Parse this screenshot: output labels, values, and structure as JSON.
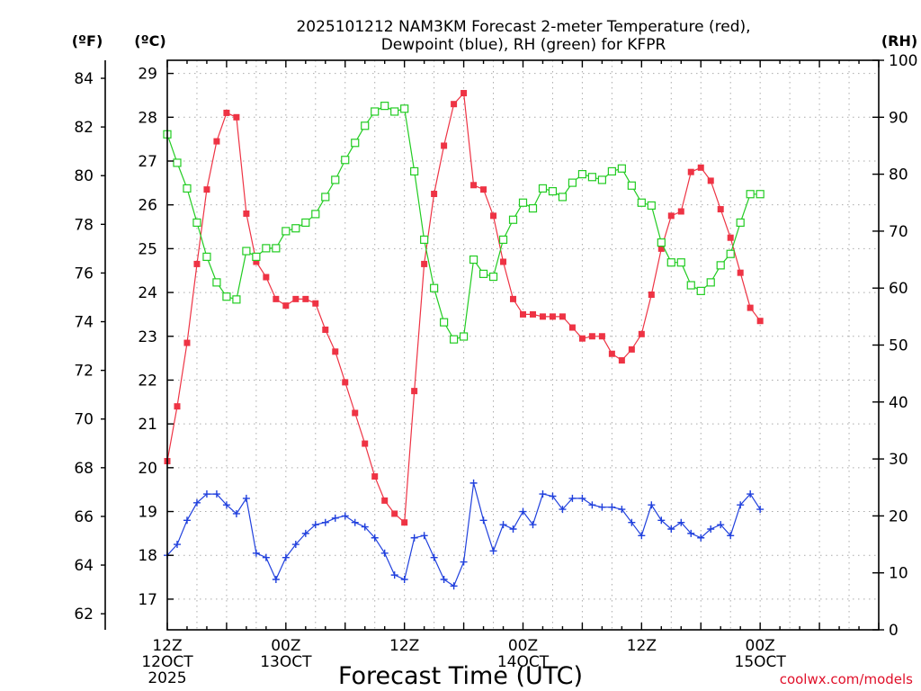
{
  "chart_data": {
    "type": "line",
    "title_lines": [
      "2025101212 NAM3KM Forecast 2-meter Temperature (red),",
      "Dewpoint (blue), RH (green) for KFPR"
    ],
    "xlabel": "Forecast Time (UTC)",
    "credit": "coolwx.com/models",
    "units": {
      "fahrenheit": "(ºF)",
      "celsius": "(ºC)",
      "rh": "(RH)"
    },
    "x_axis": {
      "unit": "forecast hour",
      "range": [
        0,
        36
      ],
      "ticks": [
        {
          "x": 0,
          "lines": [
            "12Z",
            "12OCT",
            "2025"
          ]
        },
        {
          "x": 6,
          "lines": [
            "00Z",
            "13OCT"
          ]
        },
        {
          "x": 12,
          "lines": [
            "12Z"
          ]
        },
        {
          "x": 18,
          "lines": [
            "00Z",
            "14OCT"
          ]
        },
        {
          "x": 24,
          "lines": [
            "12Z"
          ]
        },
        {
          "x": 30,
          "lines": [
            "00Z",
            "15OCT"
          ]
        }
      ],
      "major_every": 3,
      "grid_every": 1.5
    },
    "y_axes": {
      "celsius": {
        "range": [
          16.3,
          29.3
        ],
        "ticks": [
          17,
          18,
          19,
          20,
          21,
          22,
          23,
          24,
          25,
          26,
          27,
          28,
          29
        ]
      },
      "fahrenheit": {
        "range": [
          61.34,
          84.74
        ],
        "ticks": [
          62,
          64,
          66,
          68,
          70,
          72,
          74,
          76,
          78,
          80,
          82,
          84
        ]
      },
      "rh": {
        "range": [
          0,
          100
        ],
        "ticks": [
          0,
          10,
          20,
          30,
          40,
          50,
          60,
          70,
          80,
          90,
          100
        ]
      }
    },
    "series": [
      {
        "name": "2-meter Temperature",
        "color": "#ee3344",
        "marker": "filled-square",
        "axis": "celsius",
        "x": [
          0,
          0.5,
          1,
          1.5,
          2,
          2.5,
          3,
          3.5,
          4,
          4.5,
          5,
          5.5,
          6,
          6.5,
          7,
          7.5,
          8,
          8.5,
          9,
          9.5,
          10,
          10.5,
          11,
          11.5,
          12,
          12.5,
          13,
          13.5,
          14,
          14.5,
          15,
          15.5,
          16,
          16.5,
          17,
          17.5,
          18,
          18.5,
          19,
          19.5,
          20,
          20.5,
          21,
          21.5,
          22,
          22.5,
          23,
          23.5,
          24,
          24.5,
          25,
          25.5,
          26,
          26.5,
          27,
          27.5,
          28,
          28.5,
          29,
          29.5,
          30
        ],
        "values": [
          20.15,
          21.4,
          22.85,
          24.65,
          26.35,
          27.45,
          28.1,
          28.0,
          25.8,
          24.7,
          24.35,
          23.85,
          23.7,
          23.85,
          23.85,
          23.75,
          23.15,
          22.65,
          21.95,
          21.25,
          20.55,
          19.8,
          19.25,
          18.95,
          18.75,
          21.75,
          24.65,
          26.25,
          27.35,
          28.3,
          28.55,
          26.45,
          26.35,
          25.75,
          24.7,
          23.85,
          23.5,
          23.5,
          23.45,
          23.45,
          23.45,
          23.2,
          22.95,
          23.0,
          23.0,
          22.6,
          22.45,
          22.7,
          23.05,
          23.95,
          25.0,
          25.75,
          25.85,
          26.75,
          26.85,
          26.55,
          25.9,
          25.25,
          24.45,
          23.65,
          23.35
        ]
      },
      {
        "name": "Dewpoint",
        "color": "#2040dd",
        "marker": "plus",
        "axis": "celsius",
        "x": [
          0,
          0.5,
          1,
          1.5,
          2,
          2.5,
          3,
          3.5,
          4,
          4.5,
          5,
          5.5,
          6,
          6.5,
          7,
          7.5,
          8,
          8.5,
          9,
          9.5,
          10,
          10.5,
          11,
          11.5,
          12,
          12.5,
          13,
          13.5,
          14,
          14.5,
          15,
          15.5,
          16,
          16.5,
          17,
          17.5,
          18,
          18.5,
          19,
          19.5,
          20,
          20.5,
          21,
          21.5,
          22,
          22.5,
          23,
          23.5,
          24,
          24.5,
          25,
          25.5,
          26,
          26.5,
          27,
          27.5,
          28,
          28.5,
          29,
          29.5,
          30
        ],
        "values": [
          18.0,
          18.25,
          18.8,
          19.2,
          19.4,
          19.4,
          19.15,
          18.95,
          19.3,
          18.05,
          17.95,
          17.45,
          17.95,
          18.25,
          18.5,
          18.7,
          18.75,
          18.85,
          18.9,
          18.75,
          18.65,
          18.4,
          18.05,
          17.55,
          17.45,
          18.4,
          18.45,
          17.95,
          17.45,
          17.3,
          17.85,
          19.65,
          18.8,
          18.1,
          18.7,
          18.6,
          19.0,
          18.7,
          19.4,
          19.35,
          19.05,
          19.3,
          19.3,
          19.15,
          19.1,
          19.1,
          19.05,
          18.75,
          18.45,
          19.15,
          18.8,
          18.6,
          18.75,
          18.5,
          18.4,
          18.6,
          18.7,
          18.45,
          19.15,
          19.4,
          19.05
        ]
      },
      {
        "name": "RH",
        "color": "#22cc22",
        "marker": "open-square",
        "axis": "rh",
        "x": [
          0,
          0.5,
          1,
          1.5,
          2,
          2.5,
          3,
          3.5,
          4,
          4.5,
          5,
          5.5,
          6,
          6.5,
          7,
          7.5,
          8,
          8.5,
          9,
          9.5,
          10,
          10.5,
          11,
          11.5,
          12,
          12.5,
          13,
          13.5,
          14,
          14.5,
          15,
          15.5,
          16,
          16.5,
          17,
          17.5,
          18,
          18.5,
          19,
          19.5,
          20,
          20.5,
          21,
          21.5,
          22,
          22.5,
          23,
          23.5,
          24,
          24.5,
          25,
          25.5,
          26,
          26.5,
          27,
          27.5,
          28,
          28.5,
          29,
          29.5,
          30
        ],
        "values": [
          87,
          82,
          77.5,
          71.5,
          65.5,
          61,
          58.5,
          58,
          66.5,
          65.5,
          67,
          67,
          70,
          70.5,
          71.5,
          73,
          76,
          79,
          82.5,
          85.5,
          88.5,
          91,
          92,
          91,
          91.5,
          80.5,
          68.5,
          60,
          54,
          51,
          51.5,
          65,
          62.5,
          62,
          68.5,
          72,
          75,
          74,
          77.5,
          77,
          76,
          78.5,
          80,
          79.5,
          79,
          80.5,
          81,
          78,
          75,
          74.5,
          68,
          64.5,
          64.5,
          60.5,
          59.5,
          61,
          64,
          66,
          71.5,
          76.5,
          76.5
        ]
      }
    ]
  }
}
